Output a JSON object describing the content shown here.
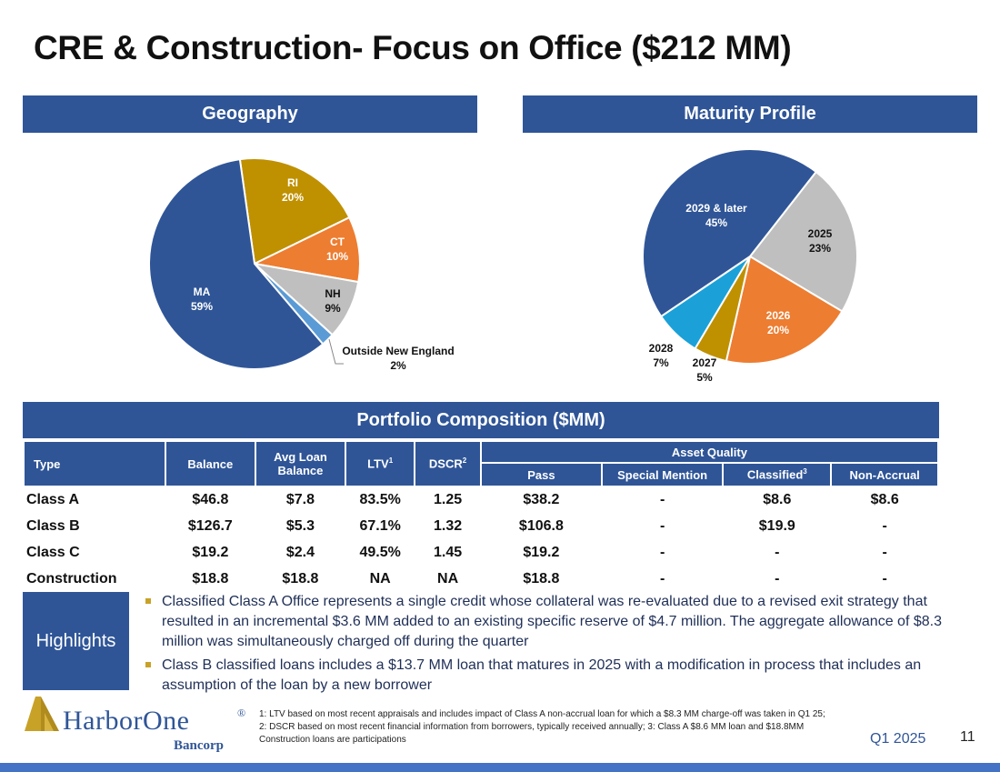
{
  "title": "CRE & Construction- Focus on Office ($212 MM)",
  "geography": {
    "header": "Geography",
    "chart_data": {
      "type": "pie",
      "title": "Geography",
      "slices": [
        {
          "label": "RI",
          "pct": "20%",
          "value": 20,
          "color": "#bf9000"
        },
        {
          "label": "CT",
          "pct": "10%",
          "value": 10,
          "color": "#ed7d31"
        },
        {
          "label": "NH",
          "pct": "9%",
          "value": 9,
          "color": "#bfbfbf"
        },
        {
          "label": "Outside New England",
          "pct": "2%",
          "value": 2,
          "color": "#5b9bd5"
        },
        {
          "label": "MA",
          "pct": "59%",
          "value": 59,
          "color": "#2f5597"
        }
      ]
    }
  },
  "maturity": {
    "header": "Maturity Profile",
    "chart_data": {
      "type": "pie",
      "title": "Maturity Profile",
      "slices": [
        {
          "label": "2025",
          "pct": "23%",
          "value": 23,
          "color": "#bfbfbf"
        },
        {
          "label": "2026",
          "pct": "20%",
          "value": 20,
          "color": "#ed7d31"
        },
        {
          "label": "2027",
          "pct": "5%",
          "value": 5,
          "color": "#bf9000"
        },
        {
          "label": "2028",
          "pct": "7%",
          "value": 7,
          "color": "#1ba1d8"
        },
        {
          "label": "2029 & later",
          "pct": "45%",
          "value": 45,
          "color": "#2f5597"
        }
      ]
    }
  },
  "portfolio": {
    "header": "Portfolio Composition ($MM)",
    "columns": {
      "type": "Type",
      "balance": "Balance",
      "avg_loan": "Avg Loan Balance",
      "ltv": "LTV",
      "ltv_sup": "1",
      "dscr": "DSCR",
      "dscr_sup": "2",
      "asset_quality": "Asset Quality",
      "pass": "Pass",
      "special_mention": "Special Mention",
      "classified": "Classified",
      "classified_sup": "3",
      "non_accrual": "Non-Accrual"
    },
    "rows": [
      {
        "type": "Class A",
        "balance": "$46.8",
        "avg": "$7.8",
        "ltv": "83.5%",
        "dscr": "1.25",
        "pass": "$38.2",
        "sm": "-",
        "classified": "$8.6",
        "na": "$8.6"
      },
      {
        "type": "Class B",
        "balance": "$126.7",
        "avg": "$5.3",
        "ltv": "67.1%",
        "dscr": "1.32",
        "pass": "$106.8",
        "sm": "-",
        "classified": "$19.9",
        "na": "-"
      },
      {
        "type": "Class C",
        "balance": "$19.2",
        "avg": "$2.4",
        "ltv": "49.5%",
        "dscr": "1.45",
        "pass": "$19.2",
        "sm": "-",
        "classified": "-",
        "na": "-"
      },
      {
        "type": "Construction",
        "balance": "$18.8",
        "avg": "$18.8",
        "ltv": "NA",
        "dscr": "NA",
        "pass": "$18.8",
        "sm": "-",
        "classified": "-",
        "na": "-"
      }
    ]
  },
  "highlights": {
    "label": "Highlights",
    "bullets": [
      "Classified Class A Office represents a single credit whose collateral was re-evaluated due to a revised exit strategy that resulted in an incremental $3.6 MM added to an existing specific reserve of $4.7 million. The aggregate allowance of $8.3 million was simultaneously charged off during the quarter",
      "Class B classified loans includes a $13.7 MM loan that matures in 2025 with a modification in process that includes an assumption of the loan by a new borrower"
    ]
  },
  "logo": {
    "name": "HarborOne",
    "registered": "®",
    "sub": "Bancorp"
  },
  "footnote": "1: LTV based on most recent appraisals and includes impact of Class A non-accrual loan for which a $8.3 MM charge-off was taken in Q1 25; 2: DSCR based on most recent financial information from borrowers, typically received annually; 3: Class A $8.6 MM loan and $18.8MM Construction loans are participations",
  "quarter": "Q1 2025",
  "page_number": "11",
  "colors": {
    "accent": "#2f5597",
    "gold": "#c8a227",
    "bar": "#4472c4"
  }
}
